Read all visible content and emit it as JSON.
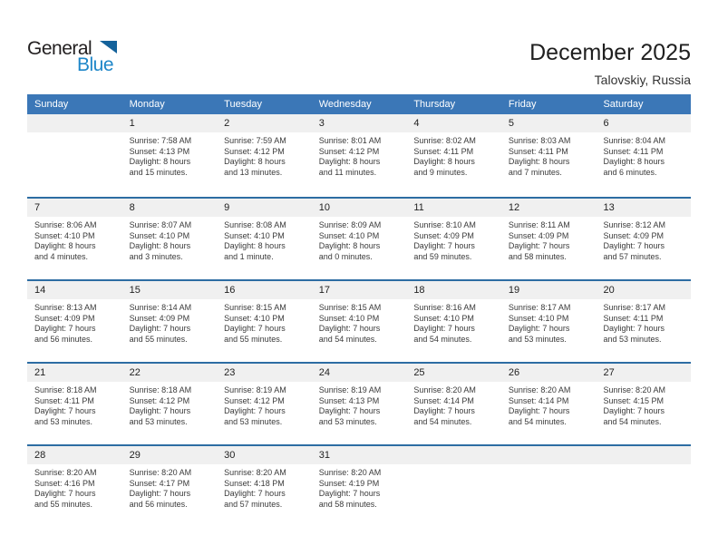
{
  "brand": {
    "word_top": "General",
    "word_bottom": "Blue"
  },
  "header": {
    "title": "December 2025",
    "location": "Talovskiy, Russia"
  },
  "colors": {
    "header_bg": "#3b77b7",
    "row_divider": "#2d6da3",
    "day_band_bg": "#f0f0f0",
    "cell_text": "#3a3a3a",
    "title_text": "#1f1f1f",
    "logo_dark": "#232021",
    "logo_blue": "#1d86c8",
    "logo_triangle": "#14629b",
    "weekday_text": "#ffffff"
  },
  "calendar": {
    "weekdays": [
      "Sunday",
      "Monday",
      "Tuesday",
      "Wednesday",
      "Thursday",
      "Friday",
      "Saturday"
    ],
    "weeks": [
      [
        null,
        {
          "day": 1,
          "sunrise": "Sunrise: 7:58 AM",
          "sunset": "Sunset: 4:13 PM",
          "daylight": "Daylight: 8 hours and 15 minutes."
        },
        {
          "day": 2,
          "sunrise": "Sunrise: 7:59 AM",
          "sunset": "Sunset: 4:12 PM",
          "daylight": "Daylight: 8 hours and 13 minutes."
        },
        {
          "day": 3,
          "sunrise": "Sunrise: 8:01 AM",
          "sunset": "Sunset: 4:12 PM",
          "daylight": "Daylight: 8 hours and 11 minutes."
        },
        {
          "day": 4,
          "sunrise": "Sunrise: 8:02 AM",
          "sunset": "Sunset: 4:11 PM",
          "daylight": "Daylight: 8 hours and 9 minutes."
        },
        {
          "day": 5,
          "sunrise": "Sunrise: 8:03 AM",
          "sunset": "Sunset: 4:11 PM",
          "daylight": "Daylight: 8 hours and 7 minutes."
        },
        {
          "day": 6,
          "sunrise": "Sunrise: 8:04 AM",
          "sunset": "Sunset: 4:11 PM",
          "daylight": "Daylight: 8 hours and 6 minutes."
        }
      ],
      [
        {
          "day": 7,
          "sunrise": "Sunrise: 8:06 AM",
          "sunset": "Sunset: 4:10 PM",
          "daylight": "Daylight: 8 hours and 4 minutes."
        },
        {
          "day": 8,
          "sunrise": "Sunrise: 8:07 AM",
          "sunset": "Sunset: 4:10 PM",
          "daylight": "Daylight: 8 hours and 3 minutes."
        },
        {
          "day": 9,
          "sunrise": "Sunrise: 8:08 AM",
          "sunset": "Sunset: 4:10 PM",
          "daylight": "Daylight: 8 hours and 1 minute."
        },
        {
          "day": 10,
          "sunrise": "Sunrise: 8:09 AM",
          "sunset": "Sunset: 4:10 PM",
          "daylight": "Daylight: 8 hours and 0 minutes."
        },
        {
          "day": 11,
          "sunrise": "Sunrise: 8:10 AM",
          "sunset": "Sunset: 4:09 PM",
          "daylight": "Daylight: 7 hours and 59 minutes."
        },
        {
          "day": 12,
          "sunrise": "Sunrise: 8:11 AM",
          "sunset": "Sunset: 4:09 PM",
          "daylight": "Daylight: 7 hours and 58 minutes."
        },
        {
          "day": 13,
          "sunrise": "Sunrise: 8:12 AM",
          "sunset": "Sunset: 4:09 PM",
          "daylight": "Daylight: 7 hours and 57 minutes."
        }
      ],
      [
        {
          "day": 14,
          "sunrise": "Sunrise: 8:13 AM",
          "sunset": "Sunset: 4:09 PM",
          "daylight": "Daylight: 7 hours and 56 minutes."
        },
        {
          "day": 15,
          "sunrise": "Sunrise: 8:14 AM",
          "sunset": "Sunset: 4:09 PM",
          "daylight": "Daylight: 7 hours and 55 minutes."
        },
        {
          "day": 16,
          "sunrise": "Sunrise: 8:15 AM",
          "sunset": "Sunset: 4:10 PM",
          "daylight": "Daylight: 7 hours and 55 minutes."
        },
        {
          "day": 17,
          "sunrise": "Sunrise: 8:15 AM",
          "sunset": "Sunset: 4:10 PM",
          "daylight": "Daylight: 7 hours and 54 minutes."
        },
        {
          "day": 18,
          "sunrise": "Sunrise: 8:16 AM",
          "sunset": "Sunset: 4:10 PM",
          "daylight": "Daylight: 7 hours and 54 minutes."
        },
        {
          "day": 19,
          "sunrise": "Sunrise: 8:17 AM",
          "sunset": "Sunset: 4:10 PM",
          "daylight": "Daylight: 7 hours and 53 minutes."
        },
        {
          "day": 20,
          "sunrise": "Sunrise: 8:17 AM",
          "sunset": "Sunset: 4:11 PM",
          "daylight": "Daylight: 7 hours and 53 minutes."
        }
      ],
      [
        {
          "day": 21,
          "sunrise": "Sunrise: 8:18 AM",
          "sunset": "Sunset: 4:11 PM",
          "daylight": "Daylight: 7 hours and 53 minutes."
        },
        {
          "day": 22,
          "sunrise": "Sunrise: 8:18 AM",
          "sunset": "Sunset: 4:12 PM",
          "daylight": "Daylight: 7 hours and 53 minutes."
        },
        {
          "day": 23,
          "sunrise": "Sunrise: 8:19 AM",
          "sunset": "Sunset: 4:12 PM",
          "daylight": "Daylight: 7 hours and 53 minutes."
        },
        {
          "day": 24,
          "sunrise": "Sunrise: 8:19 AM",
          "sunset": "Sunset: 4:13 PM",
          "daylight": "Daylight: 7 hours and 53 minutes."
        },
        {
          "day": 25,
          "sunrise": "Sunrise: 8:20 AM",
          "sunset": "Sunset: 4:14 PM",
          "daylight": "Daylight: 7 hours and 54 minutes."
        },
        {
          "day": 26,
          "sunrise": "Sunrise: 8:20 AM",
          "sunset": "Sunset: 4:14 PM",
          "daylight": "Daylight: 7 hours and 54 minutes."
        },
        {
          "day": 27,
          "sunrise": "Sunrise: 8:20 AM",
          "sunset": "Sunset: 4:15 PM",
          "daylight": "Daylight: 7 hours and 54 minutes."
        }
      ],
      [
        {
          "day": 28,
          "sunrise": "Sunrise: 8:20 AM",
          "sunset": "Sunset: 4:16 PM",
          "daylight": "Daylight: 7 hours and 55 minutes."
        },
        {
          "day": 29,
          "sunrise": "Sunrise: 8:20 AM",
          "sunset": "Sunset: 4:17 PM",
          "daylight": "Daylight: 7 hours and 56 minutes."
        },
        {
          "day": 30,
          "sunrise": "Sunrise: 8:20 AM",
          "sunset": "Sunset: 4:18 PM",
          "daylight": "Daylight: 7 hours and 57 minutes."
        },
        {
          "day": 31,
          "sunrise": "Sunrise: 8:20 AM",
          "sunset": "Sunset: 4:19 PM",
          "daylight": "Daylight: 7 hours and 58 minutes."
        },
        null,
        null,
        null
      ]
    ]
  }
}
